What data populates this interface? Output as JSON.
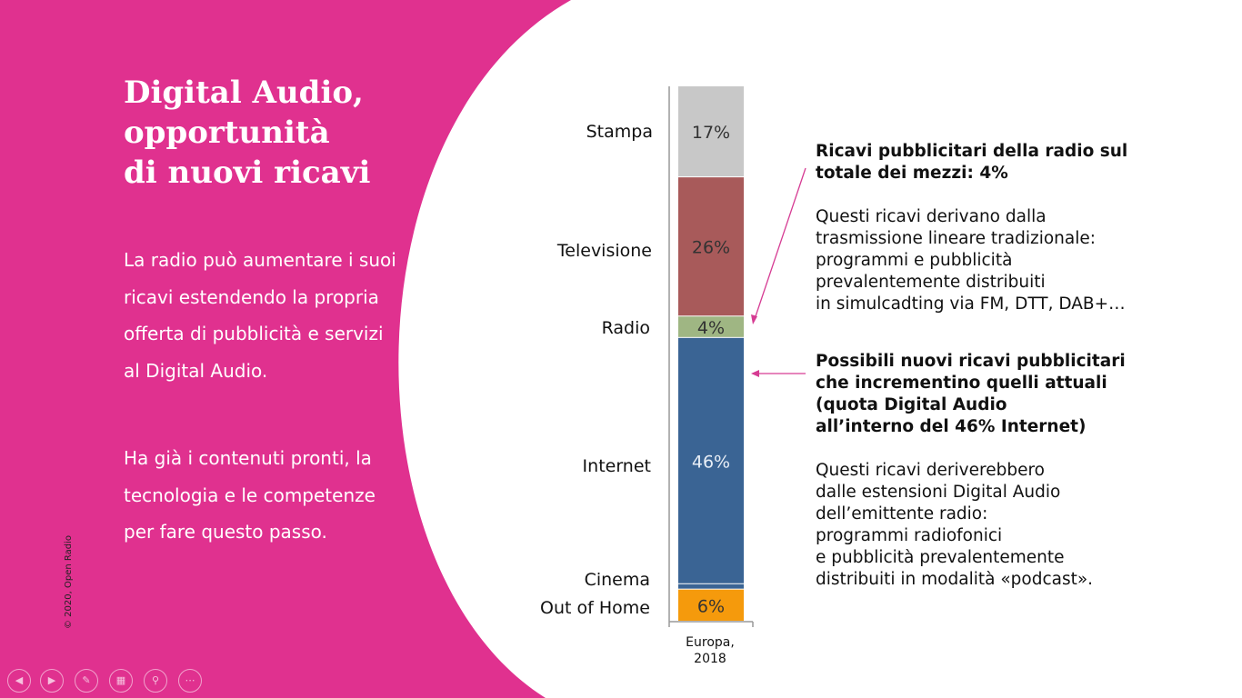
{
  "slide": {
    "title_lines": [
      "Digital Audio,",
      "opportunità",
      "di nuovi ricavi"
    ],
    "paragraph1": "La radio può aumentare i suoi ricavi estendendo la propria offerta di pubblicità e servizi al Digital Audio.",
    "paragraph2": "Ha già i contenuti pronti, la tecnologia e le competenze per fare questo passo.",
    "copyright": "© 2020, Open Radio",
    "accent_color": "#e0318f"
  },
  "notes": {
    "radio_heading": [
      "Ricavi pubblicitari della radio sul",
      "totale dei mezzi: 4%"
    ],
    "radio_body": [
      "Questi ricavi derivano dalla",
      "trasmissione lineare tradizionale:",
      "programmi e pubblicità",
      "prevalentemente distribuiti",
      "in simulcadting via FM, DTT, DAB+…"
    ],
    "internet_heading": [
      "Possibili nuovi ricavi pubblicitari",
      "che incrementino quelli attuali",
      "(quota Digital Audio",
      "all’interno del 46% Internet)"
    ],
    "internet_body": [
      "Questi ricavi deriverebbero",
      "dalle estensioni Digital Audio",
      "dell’emittente radio:",
      "programmi radiofonici",
      "e pubblicità prevalentemente",
      "distribuiti in modalità «podcast»."
    ]
  },
  "nav_icons": [
    "prev-icon",
    "next-icon",
    "pen-icon",
    "slides-icon",
    "zoom-icon",
    "more-icon"
  ],
  "chart_data": {
    "type": "bar",
    "stacked": true,
    "categories": [
      "Europa, 2018"
    ],
    "xcat_lines": [
      "Europa,",
      "2018"
    ],
    "series": [
      {
        "name": "Stampa",
        "value": 17,
        "label": "17%",
        "color": "#c8c8c8"
      },
      {
        "name": "Televisione",
        "value": 26,
        "label": "26%",
        "color": "#a85a5a"
      },
      {
        "name": "Radio",
        "value": 4,
        "label": "4%",
        "color": "#9fb683"
      },
      {
        "name": "Internet",
        "value": 46,
        "label": "46%",
        "color": "#3a6494"
      },
      {
        "name": "Cinema",
        "value": 1,
        "label": "",
        "color": "#3a6494"
      },
      {
        "name": "Out of Home",
        "value": 6,
        "label": "6%",
        "color": "#f59a0c"
      }
    ],
    "ylim": [
      0,
      100
    ]
  }
}
